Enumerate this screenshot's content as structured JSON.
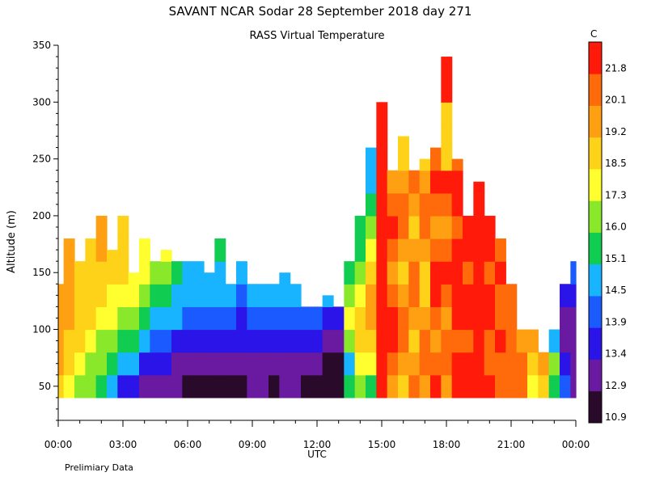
{
  "chart_data": {
    "type": "heatmap",
    "title": "SAVANT   NCAR Sodar   28 September 2018   day 271",
    "subtitle": "RASS Virtual Temperature",
    "xlabel": "UTC",
    "ylabel": "Altitude (m)",
    "xlim": [
      0,
      24
    ],
    "ylim": [
      20,
      350
    ],
    "x_tick_labels": [
      "00:00",
      "03:00",
      "06:00",
      "09:00",
      "12:00",
      "15:00",
      "18:00",
      "21:00",
      "00:00"
    ],
    "y_tick_labels": [
      "50",
      "100",
      "150",
      "200",
      "250",
      "300",
      "350"
    ],
    "colorbar": {
      "unit": "C",
      "labels": [
        "10.9",
        "12.9",
        "13.4",
        "13.9",
        "14.5",
        "15.1",
        "16.0",
        "17.3",
        "18.5",
        "19.2",
        "20.1",
        "21.8"
      ],
      "colors": [
        "#2a0a2a",
        "#6a1aa0",
        "#2a14e8",
        "#1a5aff",
        "#18b4ff",
        "#10cc50",
        "#8ae82a",
        "#ffff30",
        "#ffd21a",
        "#ffa012",
        "#ff6a0a",
        "#ff1a0a"
      ]
    },
    "note": "Prelimiary Data",
    "columns": [
      {
        "x": 0.0,
        "top": 140,
        "v": [
          19.0,
          19.2,
          19.2,
          19.3,
          19.3,
          19.3
        ]
      },
      {
        "x": 0.5,
        "top": 180,
        "v": [
          18.0,
          18.6,
          19.0,
          19.2,
          19.3,
          19.3,
          19.2,
          18.5
        ]
      },
      {
        "x": 1.0,
        "top": 160,
        "v": [
          16.5,
          17.4,
          18.5,
          18.6,
          18.8,
          19.0,
          18.7
        ]
      },
      {
        "x": 1.5,
        "top": 180,
        "v": [
          16.0,
          16.8,
          17.5,
          18.6,
          18.7,
          18.7,
          19.0,
          19.2
        ]
      },
      {
        "x": 2.0,
        "top": 200,
        "v": [
          15.2,
          16.1,
          17.0,
          17.5,
          18.6,
          19.0,
          19.3,
          19.3,
          19.2
        ]
      },
      {
        "x": 2.5,
        "top": 170,
        "v": [
          14.6,
          15.3,
          16.2,
          17.4,
          17.5,
          18.6,
          18.7,
          18.6
        ]
      },
      {
        "x": 3.0,
        "top": 200,
        "v": [
          13.5,
          14.6,
          15.3,
          16.1,
          17.4,
          18.6,
          18.7,
          18.7,
          18.6
        ]
      },
      {
        "x": 3.5,
        "top": 150,
        "v": [
          13.5,
          14.6,
          15.3,
          16.2,
          17.5,
          17.6
        ]
      },
      {
        "x": 4.0,
        "top": 180,
        "v": [
          13.0,
          13.5,
          14.6,
          15.3,
          16.1,
          17.4,
          17.5,
          18.6
        ]
      },
      {
        "x": 4.5,
        "top": 160,
        "v": [
          13.0,
          13.5,
          14.0,
          14.6,
          15.3,
          16.2,
          17.4
        ]
      },
      {
        "x": 5.0,
        "top": 170,
        "v": [
          12.9,
          13.5,
          14.0,
          14.6,
          15.3,
          16.2,
          17.4,
          17.5
        ]
      },
      {
        "x": 5.5,
        "top": 160,
        "v": [
          12.9,
          13.0,
          13.5,
          14.6,
          14.6,
          15.3,
          16.1
        ]
      },
      {
        "x": 6.0,
        "top": 160,
        "v": [
          10.9,
          12.9,
          13.5,
          14.0,
          14.6,
          14.6,
          15.3
        ]
      },
      {
        "x": 6.5,
        "top": 160,
        "v": [
          10.9,
          12.9,
          13.5,
          14.0,
          14.6,
          14.6,
          15.2
        ]
      },
      {
        "x": 7.0,
        "top": 150,
        "v": [
          10.9,
          13.0,
          13.5,
          14.0,
          14.6,
          14.7
        ]
      },
      {
        "x": 7.5,
        "top": 180,
        "v": [
          10.9,
          12.9,
          13.5,
          14.0,
          14.6,
          14.6,
          15.3,
          15.2
        ]
      },
      {
        "x": 8.0,
        "top": 140,
        "v": [
          10.9,
          13.0,
          13.5,
          14.0,
          14.6
        ]
      },
      {
        "x": 8.5,
        "top": 160,
        "v": [
          10.9,
          12.9,
          13.5,
          13.5,
          14.0,
          14.6,
          14.6
        ]
      },
      {
        "x": 9.0,
        "top": 140,
        "v": [
          12.9,
          13.0,
          13.5,
          14.0,
          14.6
        ]
      },
      {
        "x": 9.5,
        "top": 140,
        "v": [
          12.9,
          13.0,
          13.5,
          14.0,
          14.6
        ]
      },
      {
        "x": 10.0,
        "top": 140,
        "v": [
          10.9,
          13.0,
          13.5,
          14.0,
          14.6
        ]
      },
      {
        "x": 10.5,
        "top": 150,
        "v": [
          12.9,
          13.0,
          13.5,
          14.0,
          14.6,
          14.6
        ]
      },
      {
        "x": 11.0,
        "top": 140,
        "v": [
          12.9,
          13.0,
          13.5,
          14.0,
          14.6
        ]
      },
      {
        "x": 11.5,
        "top": 120,
        "v": [
          10.9,
          12.9,
          13.5,
          14.0
        ]
      },
      {
        "x": 12.0,
        "top": 120,
        "v": [
          10.9,
          12.9,
          13.5,
          14.0
        ]
      },
      {
        "x": 12.5,
        "top": 130,
        "v": [
          10.9,
          10.9,
          13.0,
          13.5,
          14.6
        ]
      },
      {
        "x": 13.0,
        "top": 120,
        "v": [
          10.9,
          10.9,
          13.0,
          13.5
        ]
      },
      {
        "x": 13.5,
        "top": 160,
        "v": [
          15.3,
          14.6,
          16.2,
          17.5,
          16.2,
          15.3,
          14.6
        ]
      },
      {
        "x": 14.0,
        "top": 200,
        "v": [
          16.3,
          17.4,
          18.6,
          18.7,
          17.5,
          16.2,
          15.3,
          15.2,
          15.2
        ]
      },
      {
        "x": 14.5,
        "top": 260,
        "v": [
          15.3,
          17.5,
          18.6,
          19.2,
          19.3,
          18.6,
          17.5,
          16.2,
          15.3,
          14.6,
          14.6,
          14.6
        ]
      },
      {
        "x": 15.0,
        "top": 300,
        "v": [
          21.8,
          21.8,
          21.8,
          21.8,
          21.8,
          21.8,
          21.8,
          21.8,
          21.8,
          21.8,
          21.8,
          21.8,
          21.8,
          21.8
        ]
      },
      {
        "x": 15.5,
        "top": 240,
        "v": [
          19.2,
          20.1,
          21.8,
          21.8,
          20.1,
          19.2,
          20.1,
          21.8,
          20.1,
          19.2,
          18.6
        ]
      },
      {
        "x": 16.0,
        "top": 270,
        "v": [
          18.6,
          19.2,
          20.1,
          20.1,
          19.2,
          18.6,
          19.2,
          20.1,
          20.1,
          19.2,
          18.6,
          18.5
        ]
      },
      {
        "x": 16.5,
        "top": 240,
        "v": [
          20.1,
          19.2,
          18.6,
          19.2,
          20.1,
          20.1,
          19.2,
          18.6,
          19.2,
          20.1,
          19.2
        ]
      },
      {
        "x": 17.0,
        "top": 250,
        "v": [
          19.2,
          20.1,
          20.1,
          19.2,
          18.6,
          18.6,
          19.2,
          20.1,
          20.1,
          19.2,
          18.6
        ]
      },
      {
        "x": 17.5,
        "top": 260,
        "v": [
          21.8,
          20.1,
          19.2,
          20.1,
          21.8,
          21.8,
          20.1,
          19.2,
          20.1,
          21.8,
          20.1,
          19.2
        ]
      },
      {
        "x": 18.0,
        "top": 340,
        "v": [
          19.2,
          20.1,
          20.1,
          19.2,
          20.1,
          21.8,
          20.1,
          19.2,
          20.1,
          21.8,
          18.6,
          18.6,
          18.6,
          21.8,
          21.8,
          21.8
        ]
      },
      {
        "x": 18.5,
        "top": 250,
        "v": [
          21.8,
          21.8,
          20.1,
          21.8,
          21.8,
          21.8,
          21.8,
          20.1,
          21.8,
          21.8,
          20.1
        ]
      },
      {
        "x": 19.0,
        "top": 200,
        "v": [
          21.8,
          21.8,
          20.1,
          21.8,
          21.8,
          20.1,
          21.8,
          21.8,
          21.8
        ]
      },
      {
        "x": 19.5,
        "top": 230,
        "v": [
          21.8,
          21.8,
          21.8,
          21.8,
          21.8,
          21.8,
          21.8,
          21.8,
          21.8,
          21.8
        ]
      },
      {
        "x": 20.0,
        "top": 200,
        "v": [
          21.8,
          20.1,
          20.1,
          21.8,
          21.8,
          20.1,
          21.8,
          21.8,
          21.8
        ]
      },
      {
        "x": 20.5,
        "top": 180,
        "v": [
          20.1,
          20.1,
          21.8,
          20.1,
          20.1,
          21.8,
          20.1,
          20.1
        ]
      },
      {
        "x": 21.0,
        "top": 140,
        "v": [
          20.1,
          20.1,
          20.1,
          20.1,
          20.1
        ]
      },
      {
        "x": 21.5,
        "top": 100,
        "v": [
          20.1,
          20.1,
          19.2
        ]
      },
      {
        "x": 22.0,
        "top": 100,
        "v": [
          17.4,
          18.6,
          19.2
        ]
      },
      {
        "x": 22.5,
        "top": 80,
        "v": [
          18.6,
          19.2
        ]
      },
      {
        "x": 23.0,
        "top": 100,
        "v": [
          15.3,
          16.2,
          14.6
        ]
      },
      {
        "x": 23.5,
        "top": 140,
        "v": [
          14.0,
          13.5,
          13.0,
          12.9,
          13.5
        ]
      },
      {
        "x": 24.0,
        "top": 160,
        "v": [
          13.0,
          13.0,
          13.0,
          13.0,
          13.5,
          13.9
        ]
      }
    ]
  }
}
